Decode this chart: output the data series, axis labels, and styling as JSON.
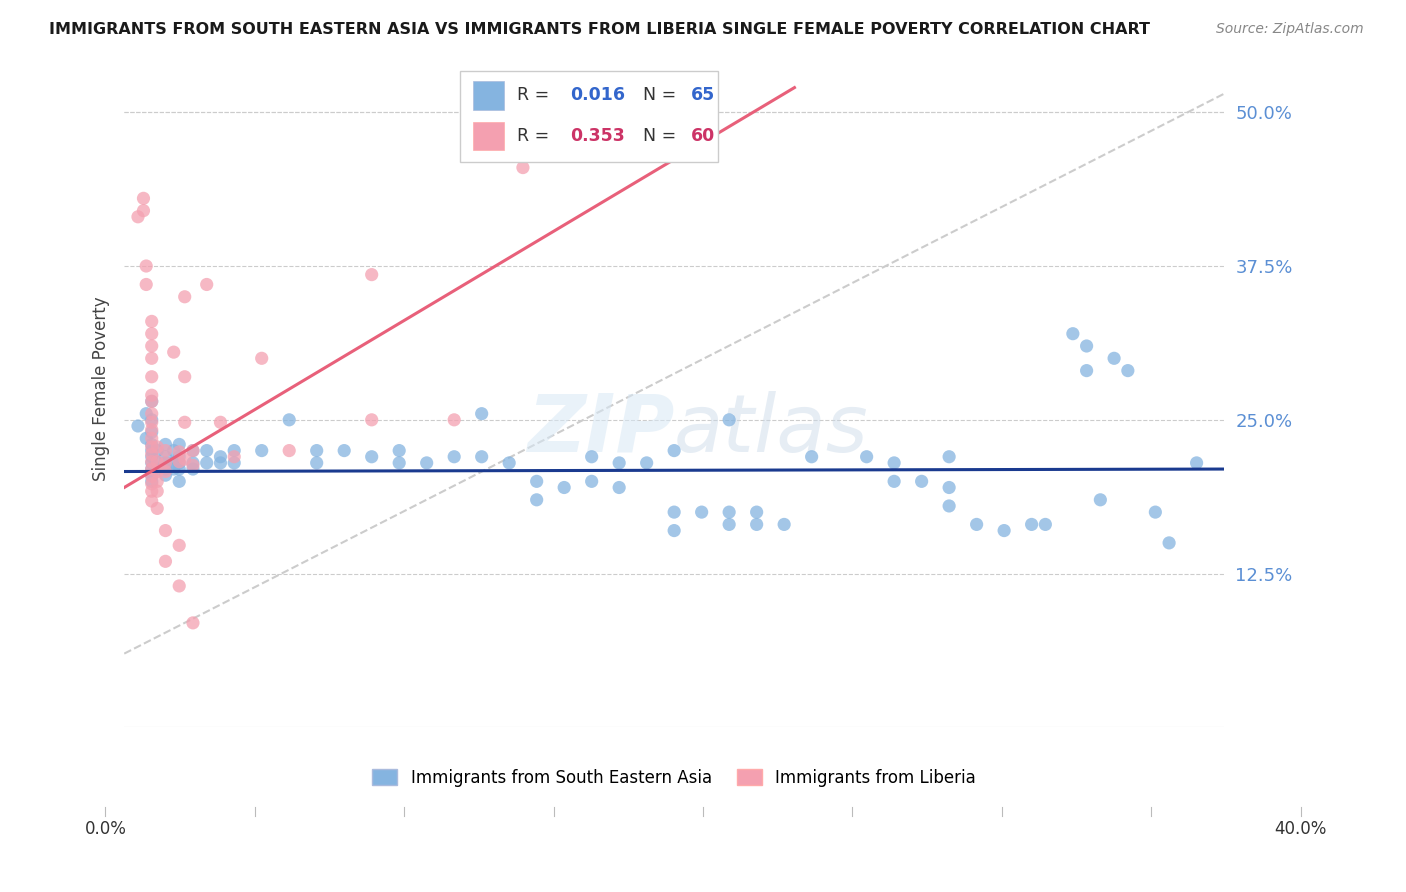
{
  "title": "IMMIGRANTS FROM SOUTH EASTERN ASIA VS IMMIGRANTS FROM LIBERIA SINGLE FEMALE POVERTY CORRELATION CHART",
  "source": "Source: ZipAtlas.com",
  "ylabel": "Single Female Poverty",
  "y_ticks": [
    0.125,
    0.25,
    0.375,
    0.5
  ],
  "y_tick_labels": [
    "12.5%",
    "25.0%",
    "37.5%",
    "50.0%"
  ],
  "x_range": [
    0.0,
    0.4
  ],
  "y_range": [
    0.0,
    0.55
  ],
  "legend_blue_R": "0.016",
  "legend_blue_N": "65",
  "legend_pink_R": "0.353",
  "legend_pink_N": "60",
  "watermark": "ZIPatlas",
  "blue_color": "#85B4E0",
  "pink_color": "#F4A0B0",
  "blue_line_color": "#1A3A8F",
  "pink_line_color": "#E8607A",
  "dashed_line_color": "#CCCCCC",
  "blue_line": [
    0.0,
    0.208,
    0.4,
    0.21
  ],
  "pink_line": [
    0.0,
    0.195,
    0.15,
    0.395
  ],
  "dash_line": [
    0.0,
    0.06,
    0.4,
    0.515
  ],
  "blue_scatter": [
    [
      0.005,
      0.245
    ],
    [
      0.008,
      0.255
    ],
    [
      0.008,
      0.235
    ],
    [
      0.01,
      0.265
    ],
    [
      0.01,
      0.25
    ],
    [
      0.01,
      0.24
    ],
    [
      0.01,
      0.23
    ],
    [
      0.01,
      0.225
    ],
    [
      0.01,
      0.22
    ],
    [
      0.01,
      0.215
    ],
    [
      0.01,
      0.21
    ],
    [
      0.01,
      0.205
    ],
    [
      0.01,
      0.2
    ],
    [
      0.012,
      0.225
    ],
    [
      0.012,
      0.215
    ],
    [
      0.012,
      0.21
    ],
    [
      0.015,
      0.23
    ],
    [
      0.015,
      0.22
    ],
    [
      0.015,
      0.215
    ],
    [
      0.015,
      0.21
    ],
    [
      0.015,
      0.205
    ],
    [
      0.018,
      0.225
    ],
    [
      0.018,
      0.215
    ],
    [
      0.018,
      0.21
    ],
    [
      0.02,
      0.23
    ],
    [
      0.02,
      0.22
    ],
    [
      0.02,
      0.215
    ],
    [
      0.02,
      0.21
    ],
    [
      0.02,
      0.2
    ],
    [
      0.025,
      0.225
    ],
    [
      0.025,
      0.215
    ],
    [
      0.025,
      0.21
    ],
    [
      0.03,
      0.225
    ],
    [
      0.03,
      0.215
    ],
    [
      0.035,
      0.22
    ],
    [
      0.035,
      0.215
    ],
    [
      0.04,
      0.225
    ],
    [
      0.04,
      0.215
    ],
    [
      0.05,
      0.225
    ],
    [
      0.06,
      0.25
    ],
    [
      0.07,
      0.225
    ],
    [
      0.07,
      0.215
    ],
    [
      0.08,
      0.225
    ],
    [
      0.09,
      0.22
    ],
    [
      0.1,
      0.225
    ],
    [
      0.1,
      0.215
    ],
    [
      0.11,
      0.215
    ],
    [
      0.12,
      0.22
    ],
    [
      0.13,
      0.255
    ],
    [
      0.13,
      0.22
    ],
    [
      0.14,
      0.215
    ],
    [
      0.15,
      0.2
    ],
    [
      0.15,
      0.185
    ],
    [
      0.16,
      0.195
    ],
    [
      0.17,
      0.22
    ],
    [
      0.17,
      0.2
    ],
    [
      0.18,
      0.215
    ],
    [
      0.18,
      0.195
    ],
    [
      0.19,
      0.215
    ],
    [
      0.2,
      0.225
    ],
    [
      0.2,
      0.175
    ],
    [
      0.2,
      0.16
    ],
    [
      0.21,
      0.175
    ],
    [
      0.22,
      0.25
    ],
    [
      0.22,
      0.175
    ],
    [
      0.22,
      0.165
    ],
    [
      0.23,
      0.175
    ],
    [
      0.23,
      0.165
    ],
    [
      0.24,
      0.165
    ],
    [
      0.25,
      0.22
    ],
    [
      0.27,
      0.22
    ],
    [
      0.28,
      0.215
    ],
    [
      0.28,
      0.2
    ],
    [
      0.29,
      0.2
    ],
    [
      0.3,
      0.22
    ],
    [
      0.3,
      0.195
    ],
    [
      0.3,
      0.18
    ],
    [
      0.31,
      0.165
    ],
    [
      0.32,
      0.16
    ],
    [
      0.33,
      0.165
    ],
    [
      0.335,
      0.165
    ],
    [
      0.345,
      0.32
    ],
    [
      0.35,
      0.31
    ],
    [
      0.35,
      0.29
    ],
    [
      0.355,
      0.185
    ],
    [
      0.36,
      0.3
    ],
    [
      0.365,
      0.29
    ],
    [
      0.375,
      0.175
    ],
    [
      0.38,
      0.15
    ],
    [
      0.39,
      0.215
    ]
  ],
  "pink_scatter": [
    [
      0.005,
      0.415
    ],
    [
      0.007,
      0.43
    ],
    [
      0.007,
      0.42
    ],
    [
      0.008,
      0.375
    ],
    [
      0.008,
      0.36
    ],
    [
      0.01,
      0.33
    ],
    [
      0.01,
      0.32
    ],
    [
      0.01,
      0.31
    ],
    [
      0.01,
      0.3
    ],
    [
      0.01,
      0.285
    ],
    [
      0.01,
      0.27
    ],
    [
      0.01,
      0.265
    ],
    [
      0.01,
      0.255
    ],
    [
      0.01,
      0.248
    ],
    [
      0.01,
      0.242
    ],
    [
      0.01,
      0.235
    ],
    [
      0.01,
      0.228
    ],
    [
      0.01,
      0.222
    ],
    [
      0.01,
      0.216
    ],
    [
      0.01,
      0.21
    ],
    [
      0.01,
      0.204
    ],
    [
      0.01,
      0.198
    ],
    [
      0.01,
      0.192
    ],
    [
      0.01,
      0.184
    ],
    [
      0.012,
      0.228
    ],
    [
      0.012,
      0.216
    ],
    [
      0.012,
      0.208
    ],
    [
      0.012,
      0.2
    ],
    [
      0.012,
      0.192
    ],
    [
      0.012,
      0.178
    ],
    [
      0.015,
      0.225
    ],
    [
      0.015,
      0.215
    ],
    [
      0.015,
      0.208
    ],
    [
      0.015,
      0.16
    ],
    [
      0.015,
      0.135
    ],
    [
      0.018,
      0.305
    ],
    [
      0.02,
      0.224
    ],
    [
      0.02,
      0.216
    ],
    [
      0.02,
      0.148
    ],
    [
      0.02,
      0.115
    ],
    [
      0.022,
      0.35
    ],
    [
      0.022,
      0.285
    ],
    [
      0.022,
      0.248
    ],
    [
      0.022,
      0.218
    ],
    [
      0.025,
      0.225
    ],
    [
      0.025,
      0.213
    ],
    [
      0.025,
      0.085
    ],
    [
      0.03,
      0.36
    ],
    [
      0.035,
      0.248
    ],
    [
      0.04,
      0.22
    ],
    [
      0.05,
      0.3
    ],
    [
      0.06,
      0.225
    ],
    [
      0.09,
      0.25
    ],
    [
      0.09,
      0.368
    ],
    [
      0.12,
      0.25
    ],
    [
      0.145,
      0.455
    ]
  ]
}
